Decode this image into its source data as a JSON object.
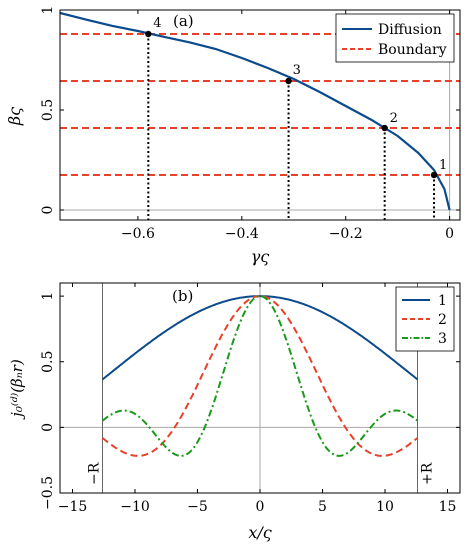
{
  "colors": {
    "diffusion": "#0b4a8b",
    "boundary": "#e8412a",
    "mode1": "#0b4a8b",
    "mode2": "#e8412a",
    "mode3": "#1a9a1a",
    "zero_line": "#a8a8a8",
    "dotted": "#000000"
  },
  "chart_data": [
    {
      "type": "line",
      "panel_label": "(a)",
      "xlabel": "γς",
      "ylabel": "βς",
      "xlim": [
        -0.75,
        0.02
      ],
      "ylim": [
        -0.05,
        1.0
      ],
      "xticks": [
        -0.6,
        -0.4,
        -0.2,
        0
      ],
      "xtick_labels": [
        "−0.6",
        "−0.4",
        "−0.2",
        "0"
      ],
      "yticks": [
        0,
        0.5,
        1
      ],
      "ytick_labels": [
        "0",
        "0.5",
        "1"
      ],
      "legend": {
        "position": "top-right",
        "entries": [
          {
            "label": "Diffusion",
            "style": "solid",
            "color_key": "diffusion"
          },
          {
            "label": "Boundary",
            "style": "dashed",
            "color_key": "boundary"
          }
        ]
      },
      "series": [
        {
          "name": "Diffusion",
          "style": "solid",
          "color_key": "diffusion",
          "x": [
            -0.75,
            -0.7,
            -0.65,
            -0.6,
            -0.55,
            -0.5,
            -0.45,
            -0.4,
            -0.35,
            -0.3,
            -0.25,
            -0.2,
            -0.15,
            -0.1,
            -0.06,
            -0.03,
            -0.01,
            0.0
          ],
          "y": [
            0.985,
            0.952,
            0.921,
            0.895,
            0.866,
            0.838,
            0.805,
            0.76,
            0.71,
            0.655,
            0.59,
            0.52,
            0.45,
            0.37,
            0.285,
            0.2,
            0.105,
            0.0
          ]
        }
      ],
      "boundary_lines": [
        0.175,
        0.41,
        0.645,
        0.88
      ],
      "points": [
        {
          "label": "1",
          "x": -0.03,
          "y": 0.175
        },
        {
          "label": "2",
          "x": -0.125,
          "y": 0.41
        },
        {
          "label": "3",
          "x": -0.31,
          "y": 0.645
        },
        {
          "label": "4",
          "x": -0.58,
          "y": 0.88
        }
      ]
    },
    {
      "type": "line",
      "panel_label": "(b)",
      "xlabel": "x/ς",
      "ylabel": "j₀⁽ᵈ⁾(βₙr)",
      "xlim": [
        -16,
        16
      ],
      "ylim": [
        -0.5,
        1.1
      ],
      "xticks": [
        -15,
        -10,
        -5,
        0,
        5,
        10,
        15
      ],
      "xtick_labels": [
        "−15",
        "−10",
        "−5",
        "0",
        "5",
        "10",
        "15"
      ],
      "yticks": [
        -0.5,
        0,
        0.5,
        1
      ],
      "ytick_labels": [
        "−0.5",
        "0",
        "0.5",
        "1"
      ],
      "R": 12.6,
      "boundary_labels": [
        "−R",
        "+R"
      ],
      "legend": {
        "position": "top-right",
        "entries": [
          {
            "label": "1",
            "style": "solid",
            "color_key": "mode1"
          },
          {
            "label": "2",
            "style": "dashed",
            "color_key": "mode2"
          },
          {
            "label": "3",
            "style": "dashdot",
            "color_key": "mode3"
          }
        ]
      },
      "series": [
        {
          "name": "1",
          "style": "solid",
          "color_key": "mode1",
          "beta": 0.175,
          "x_range": [
            -12.6,
            12.6
          ]
        },
        {
          "name": "2",
          "style": "dashed",
          "color_key": "mode2",
          "beta": 0.46,
          "x_range": [
            -12.6,
            12.6
          ]
        },
        {
          "name": "3",
          "style": "dashdot",
          "color_key": "mode3",
          "beta": 0.71,
          "x_range": [
            -12.6,
            12.6
          ]
        }
      ]
    }
  ]
}
